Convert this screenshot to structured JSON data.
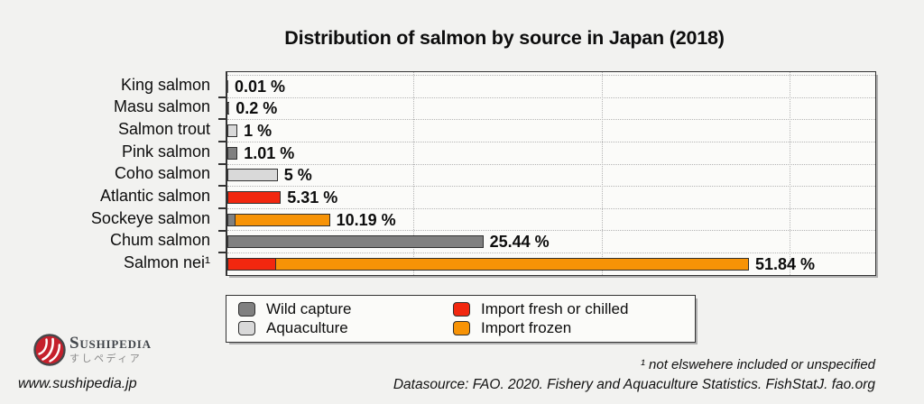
{
  "title": "Distribution of salmon by source in Japan (2018)",
  "chart_data": {
    "type": "bar",
    "orientation": "horizontal",
    "unit": "%",
    "title": "Distribution of salmon by source in Japan (2018)",
    "xlim": [
      0,
      64.4
    ],
    "gridlines_x": [
      18.5,
      37.2,
      55.9
    ],
    "grid": "dotted",
    "categories": [
      "King salmon",
      "Masu salmon",
      "Salmon trout",
      "Pink salmon",
      "Coho salmon",
      "Atlantic salmon",
      "Sockeye salmon",
      "Chum salmon",
      "Salmon nei¹"
    ],
    "values": [
      0.01,
      0.2,
      1,
      1.01,
      5,
      5.31,
      10.19,
      25.44,
      51.84
    ],
    "bars": [
      {
        "category": "King salmon",
        "label": "0.01 %",
        "total": 0.01,
        "segments": [
          {
            "series": "Wild capture",
            "value": 0.01
          }
        ]
      },
      {
        "category": "Masu salmon",
        "label": "0.2 %",
        "total": 0.2,
        "segments": [
          {
            "series": "Wild capture",
            "value": 0.2
          }
        ]
      },
      {
        "category": "Salmon trout",
        "label": "1 %",
        "total": 1,
        "segments": [
          {
            "series": "Aquaculture",
            "value": 1
          }
        ]
      },
      {
        "category": "Pink salmon",
        "label": "1.01 %",
        "total": 1.01,
        "segments": [
          {
            "series": "Wild capture",
            "value": 1.01
          }
        ]
      },
      {
        "category": "Coho salmon",
        "label": "5 %",
        "total": 5,
        "segments": [
          {
            "series": "Aquaculture",
            "value": 5
          }
        ]
      },
      {
        "category": "Atlantic salmon",
        "label": "5.31 %",
        "total": 5.31,
        "segments": [
          {
            "series": "Import fresh or chilled",
            "value": 5.31
          }
        ]
      },
      {
        "category": "Sockeye salmon",
        "label": "10.19 %",
        "total": 10.19,
        "segments": [
          {
            "series": "Wild capture",
            "value": 0.6
          },
          {
            "series": "Import frozen",
            "value": 9.59
          }
        ]
      },
      {
        "category": "Chum salmon",
        "label": "25.44 %",
        "total": 25.44,
        "segments": [
          {
            "series": "Wild capture",
            "value": 25.44
          }
        ]
      },
      {
        "category": "Salmon nei¹",
        "label": "51.84 %",
        "total": 51.84,
        "segments": [
          {
            "series": "Import fresh or chilled",
            "value": 4.7
          },
          {
            "series": "Import frozen",
            "value": 47.14
          }
        ]
      }
    ],
    "series_colors": {
      "Wild capture": "#808080",
      "Aquaculture": "#d9d9d9",
      "Import fresh or chilled": "#f2270f",
      "Import frozen": "#f79306"
    },
    "legend_position": "bottom-left"
  },
  "legend": {
    "items": [
      {
        "label": "Wild capture",
        "color": "#808080"
      },
      {
        "label": "Aquaculture",
        "color": "#d9d9d9"
      },
      {
        "label": "Import fresh or chilled",
        "color": "#f2270f"
      },
      {
        "label": "Import frozen",
        "color": "#f79306"
      }
    ]
  },
  "footer": {
    "brand": {
      "name": "Sushipedia",
      "jp": "すしペディア",
      "url": "www.sushipedia.jp",
      "logo_color": "#c5202c"
    },
    "note": "¹ not elswehere included or unspecified",
    "datasource": "Datasource: FAO. 2020. Fishery and Aquaculture Statistics. FishStatJ. fao.org"
  },
  "colors": {
    "page_bg": "#f2f2f0",
    "plot_bg": "#fbfbf9",
    "frame": "#333333",
    "gridline": "#b5b5b5"
  }
}
